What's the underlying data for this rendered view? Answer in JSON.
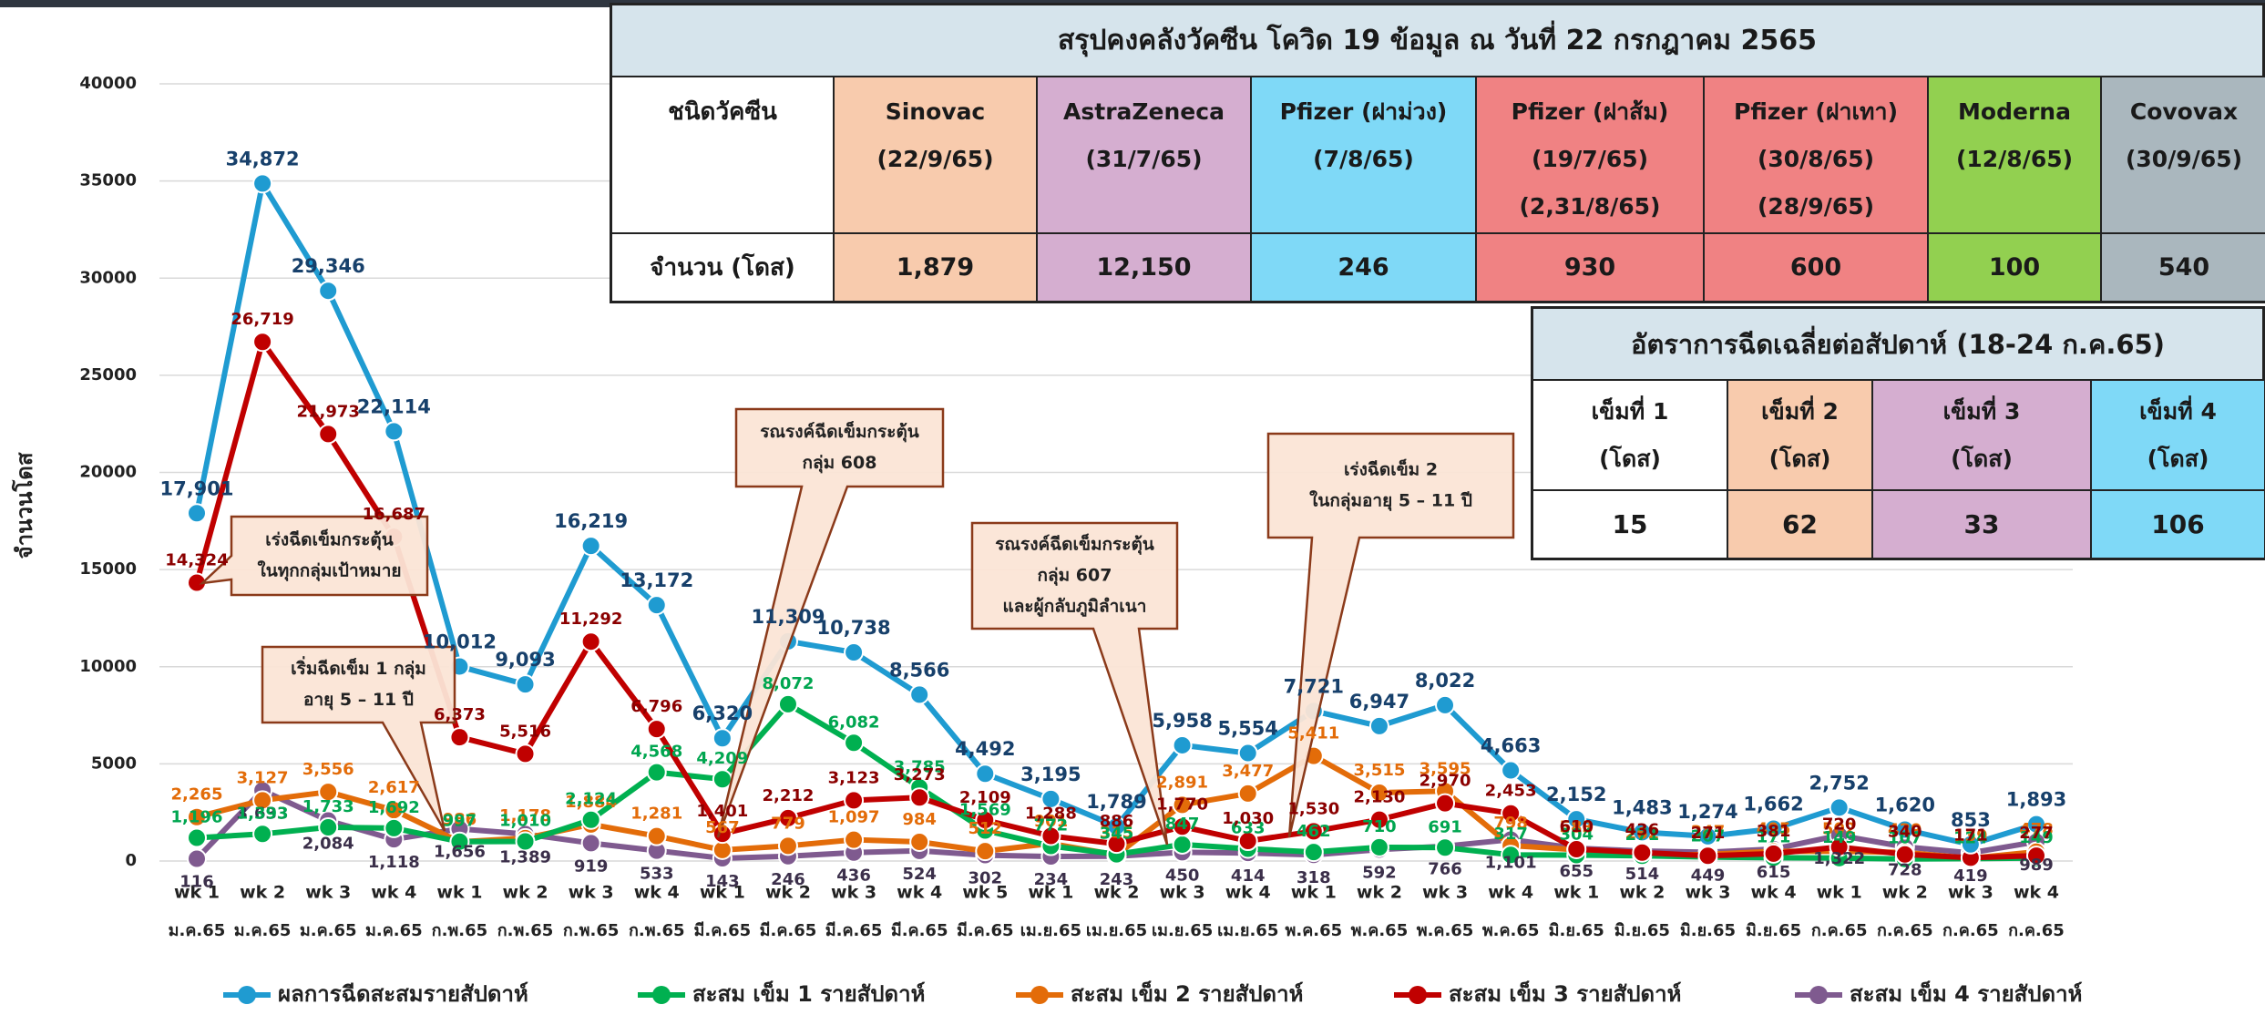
{
  "chart_data": {
    "type": "line",
    "y_label": "จำนวนโดส",
    "categories": [
      "wk 1",
      "wk 2",
      "wk 3",
      "wk 4",
      "wk 1",
      "wk 2",
      "wk 3",
      "wk 4",
      "wk 1",
      "wk 2",
      "wk 3",
      "wk 4",
      "wk 5",
      "wk 1",
      "wk 2",
      "wk 3",
      "wk 4",
      "wk 1",
      "wk 2",
      "wk 3",
      "wk 4",
      "wk 1",
      "wk 2",
      "wk 3",
      "wk 4",
      "wk 1",
      "wk 2",
      "wk 3",
      "wk 4"
    ],
    "months": [
      "ม.ค.65",
      "ม.ค.65",
      "ม.ค.65",
      "ม.ค.65",
      "ก.พ.65",
      "ก.พ.65",
      "ก.พ.65",
      "ก.พ.65",
      "มี.ค.65",
      "มี.ค.65",
      "มี.ค.65",
      "มี.ค.65",
      "มี.ค.65",
      "เม.ย.65",
      "เม.ย.65",
      "เม.ย.65",
      "เม.ย.65",
      "พ.ค.65",
      "พ.ค.65",
      "พ.ค.65",
      "พ.ค.65",
      "มิ.ย.65",
      "มิ.ย.65",
      "มิ.ย.65",
      "มิ.ย.65",
      "ก.ค.65",
      "ก.ค.65",
      "ก.ค.65",
      "ก.ค.65"
    ],
    "ylim": [
      0,
      40000
    ],
    "yticks": [
      0,
      5000,
      10000,
      15000,
      20000,
      25000,
      30000,
      35000,
      40000
    ],
    "grid": true,
    "legend": "bottom",
    "series": [
      {
        "name": "ผลการฉีดสะสมรายสัปดาห์",
        "color": "#1f9bd1",
        "values": [
          17901,
          34872,
          29346,
          22114,
          10012,
          9093,
          16219,
          13172,
          6320,
          11309,
          10738,
          8566,
          4492,
          3195,
          1789,
          5958,
          5554,
          7721,
          6947,
          8022,
          4663,
          2152,
          1483,
          1274,
          1662,
          2752,
          1620,
          853,
          1893
        ],
        "value_labels": [
          "17,901",
          "34,872",
          "29,346",
          "22,114",
          "10,012",
          "9,093",
          "16,219",
          "13,172",
          "6,320",
          "11,309",
          "10,738",
          "8,566",
          "4,492",
          "3,195",
          "1,789",
          "5,958",
          "5,554",
          "7,721",
          "6,947",
          "8,022",
          "4,663",
          "2,152",
          "1,483",
          "1,274",
          "1,662",
          "2,752",
          "1,620",
          "853",
          "1,893"
        ]
      },
      {
        "name": "สะสม เข็ม 1 รายสัปดาห์",
        "color": "#00b050",
        "values": [
          1196,
          1393,
          1733,
          1692,
          997,
          1010,
          2124,
          4568,
          4209,
          8072,
          6082,
          3785,
          1569,
          772,
          345,
          847,
          633,
          462,
          710,
          691,
          317,
          304,
          271,
          207,
          171,
          149,
          107,
          124,
          149
        ],
        "value_labels": [
          "1,196",
          "1,393",
          "1,733",
          "1,692",
          "997",
          "1,010",
          "2,124",
          "4,568",
          "4,209",
          "8,072",
          "6,082",
          "3,785",
          "1,569",
          "772",
          "345",
          "847",
          "633",
          "462",
          "710",
          "691",
          "317",
          "304",
          "271",
          "207",
          "171",
          "149",
          "107",
          "124",
          "149"
        ]
      },
      {
        "name": "สะสม เข็ม 2 รายสัปดาห์",
        "color": "#e36c09",
        "values": [
          2265,
          3127,
          3556,
          2617,
          986,
          1178,
          1884,
          1281,
          567,
          779,
          1097,
          984,
          512,
          901,
          315,
          2891,
          3477,
          5411,
          3515,
          3595,
          798,
          583,
          262,
          347,
          495,
          502,
          439,
          139,
          478
        ],
        "value_labels": [
          "2,265",
          "3,127",
          "3,556",
          "2,617",
          "986",
          "1,178",
          "1,884",
          "1,281",
          "567",
          "779",
          "1,097",
          "984",
          "512",
          "901",
          "315",
          "2,891",
          "3,477",
          "5,411",
          "3,515",
          "3,595",
          "798",
          "583",
          "262",
          "347",
          "495",
          "502",
          "439",
          "139",
          "478"
        ]
      },
      {
        "name": "สะสม เข็ม 3 รายสัปดาห์",
        "color": "#c00000",
        "values": [
          14324,
          26719,
          21973,
          16687,
          6373,
          5516,
          11292,
          6796,
          1401,
          2212,
          3123,
          3273,
          2109,
          1288,
          886,
          1770,
          1030,
          1530,
          2130,
          2970,
          2453,
          610,
          436,
          271,
          381,
          720,
          340,
          171,
          277
        ],
        "value_labels": [
          "14,324",
          "26,719",
          "21,973",
          "16,687",
          "6,373",
          "5,516",
          "11,292",
          "6,796",
          "1,401",
          "2,212",
          "3,123",
          "3,273",
          "2,109",
          "1,288",
          "886",
          "1,770",
          "1,030",
          "1,530",
          "2,130",
          "2,970",
          "2,453",
          "610",
          "436",
          "271",
          "381",
          "720",
          "340",
          "171",
          "277"
        ]
      },
      {
        "name": "สะสม เข็ม 4 รายสัปดาห์",
        "color": "#7f5a8f",
        "values": [
          116,
          3633,
          2084,
          1118,
          1656,
          1389,
          919,
          533,
          143,
          246,
          436,
          524,
          302,
          234,
          243,
          450,
          414,
          318,
          592,
          766,
          1101,
          655,
          514,
          449,
          615,
          1322,
          728,
          419,
          989
        ],
        "value_labels": [
          "116",
          "3,633",
          "2,084",
          "1,118",
          "1,656",
          "1,389",
          "919",
          "533",
          "143",
          "246",
          "436",
          "524",
          "302",
          "234",
          "243",
          "450",
          "414",
          "318",
          "592",
          "766",
          "1,101",
          "655",
          "514",
          "449",
          "615",
          "1,322",
          "728",
          "419",
          "989"
        ]
      }
    ],
    "annotations": [
      [
        "เร่งฉีดเข็มกระตุ้น",
        "ในทุกกลุ่มเป้าหมาย"
      ],
      [
        "เริ่มฉีดเข็ม 1 กลุ่ม",
        "อายุ 5 – 11 ปี"
      ],
      [
        "รณรงค์ฉีดเข็มกระตุ้น",
        "กลุ่ม 608"
      ],
      [
        "รณรงค์ฉีดเข็มกระตุ้น",
        "กลุ่ม 607",
        "และผู้กลับภูมิลำเนา"
      ],
      [
        "เร่งฉีดเข็ม 2",
        "ในกลุ่มอายุ 5 – 11 ปี"
      ]
    ]
  },
  "stock_table": {
    "title": "สรุปคงคลังวัคซีน โควิด 19 ข้อมูล ณ วันที่ 22 กรกฎาคม 2565",
    "header_label": "ชนิดวัคซีน",
    "row_label": "จำนวน (โดส)",
    "columns": [
      {
        "lines": [
          "Sinovac",
          "(22/9/65)"
        ],
        "value": "1,879"
      },
      {
        "lines": [
          "AstraZeneca",
          "(31/7/65)"
        ],
        "value": "12,150"
      },
      {
        "lines": [
          "Pfizer (ฝาม่วง)",
          "(7/8/65)"
        ],
        "value": "246"
      },
      {
        "lines": [
          "Pfizer (ฝาส้ม)",
          "(19/7/65)",
          "(2,31/8/65)"
        ],
        "value": "930"
      },
      {
        "lines": [
          "Pfizer (ฝาเทา)",
          "(30/8/65)",
          "(28/9/65)"
        ],
        "value": "600"
      },
      {
        "lines": [
          "Moderna",
          "(12/8/65)"
        ],
        "value": "100"
      },
      {
        "lines": [
          "Covovax",
          "(30/9/65)"
        ],
        "value": "540"
      }
    ]
  },
  "rate_table": {
    "title": "อัตราการฉีดเฉลี่ยต่อสัปดาห์ (18-24 ก.ค.65)",
    "columns": [
      {
        "lines": [
          "เข็มที่ 1",
          "(โดส)"
        ],
        "value": "15"
      },
      {
        "lines": [
          "เข็มที่ 2",
          "(โดส)"
        ],
        "value": "62"
      },
      {
        "lines": [
          "เข็มที่ 3",
          "(โดส)"
        ],
        "value": "33"
      },
      {
        "lines": [
          "เข็มที่ 4",
          "(โดส)"
        ],
        "value": "106"
      }
    ]
  }
}
